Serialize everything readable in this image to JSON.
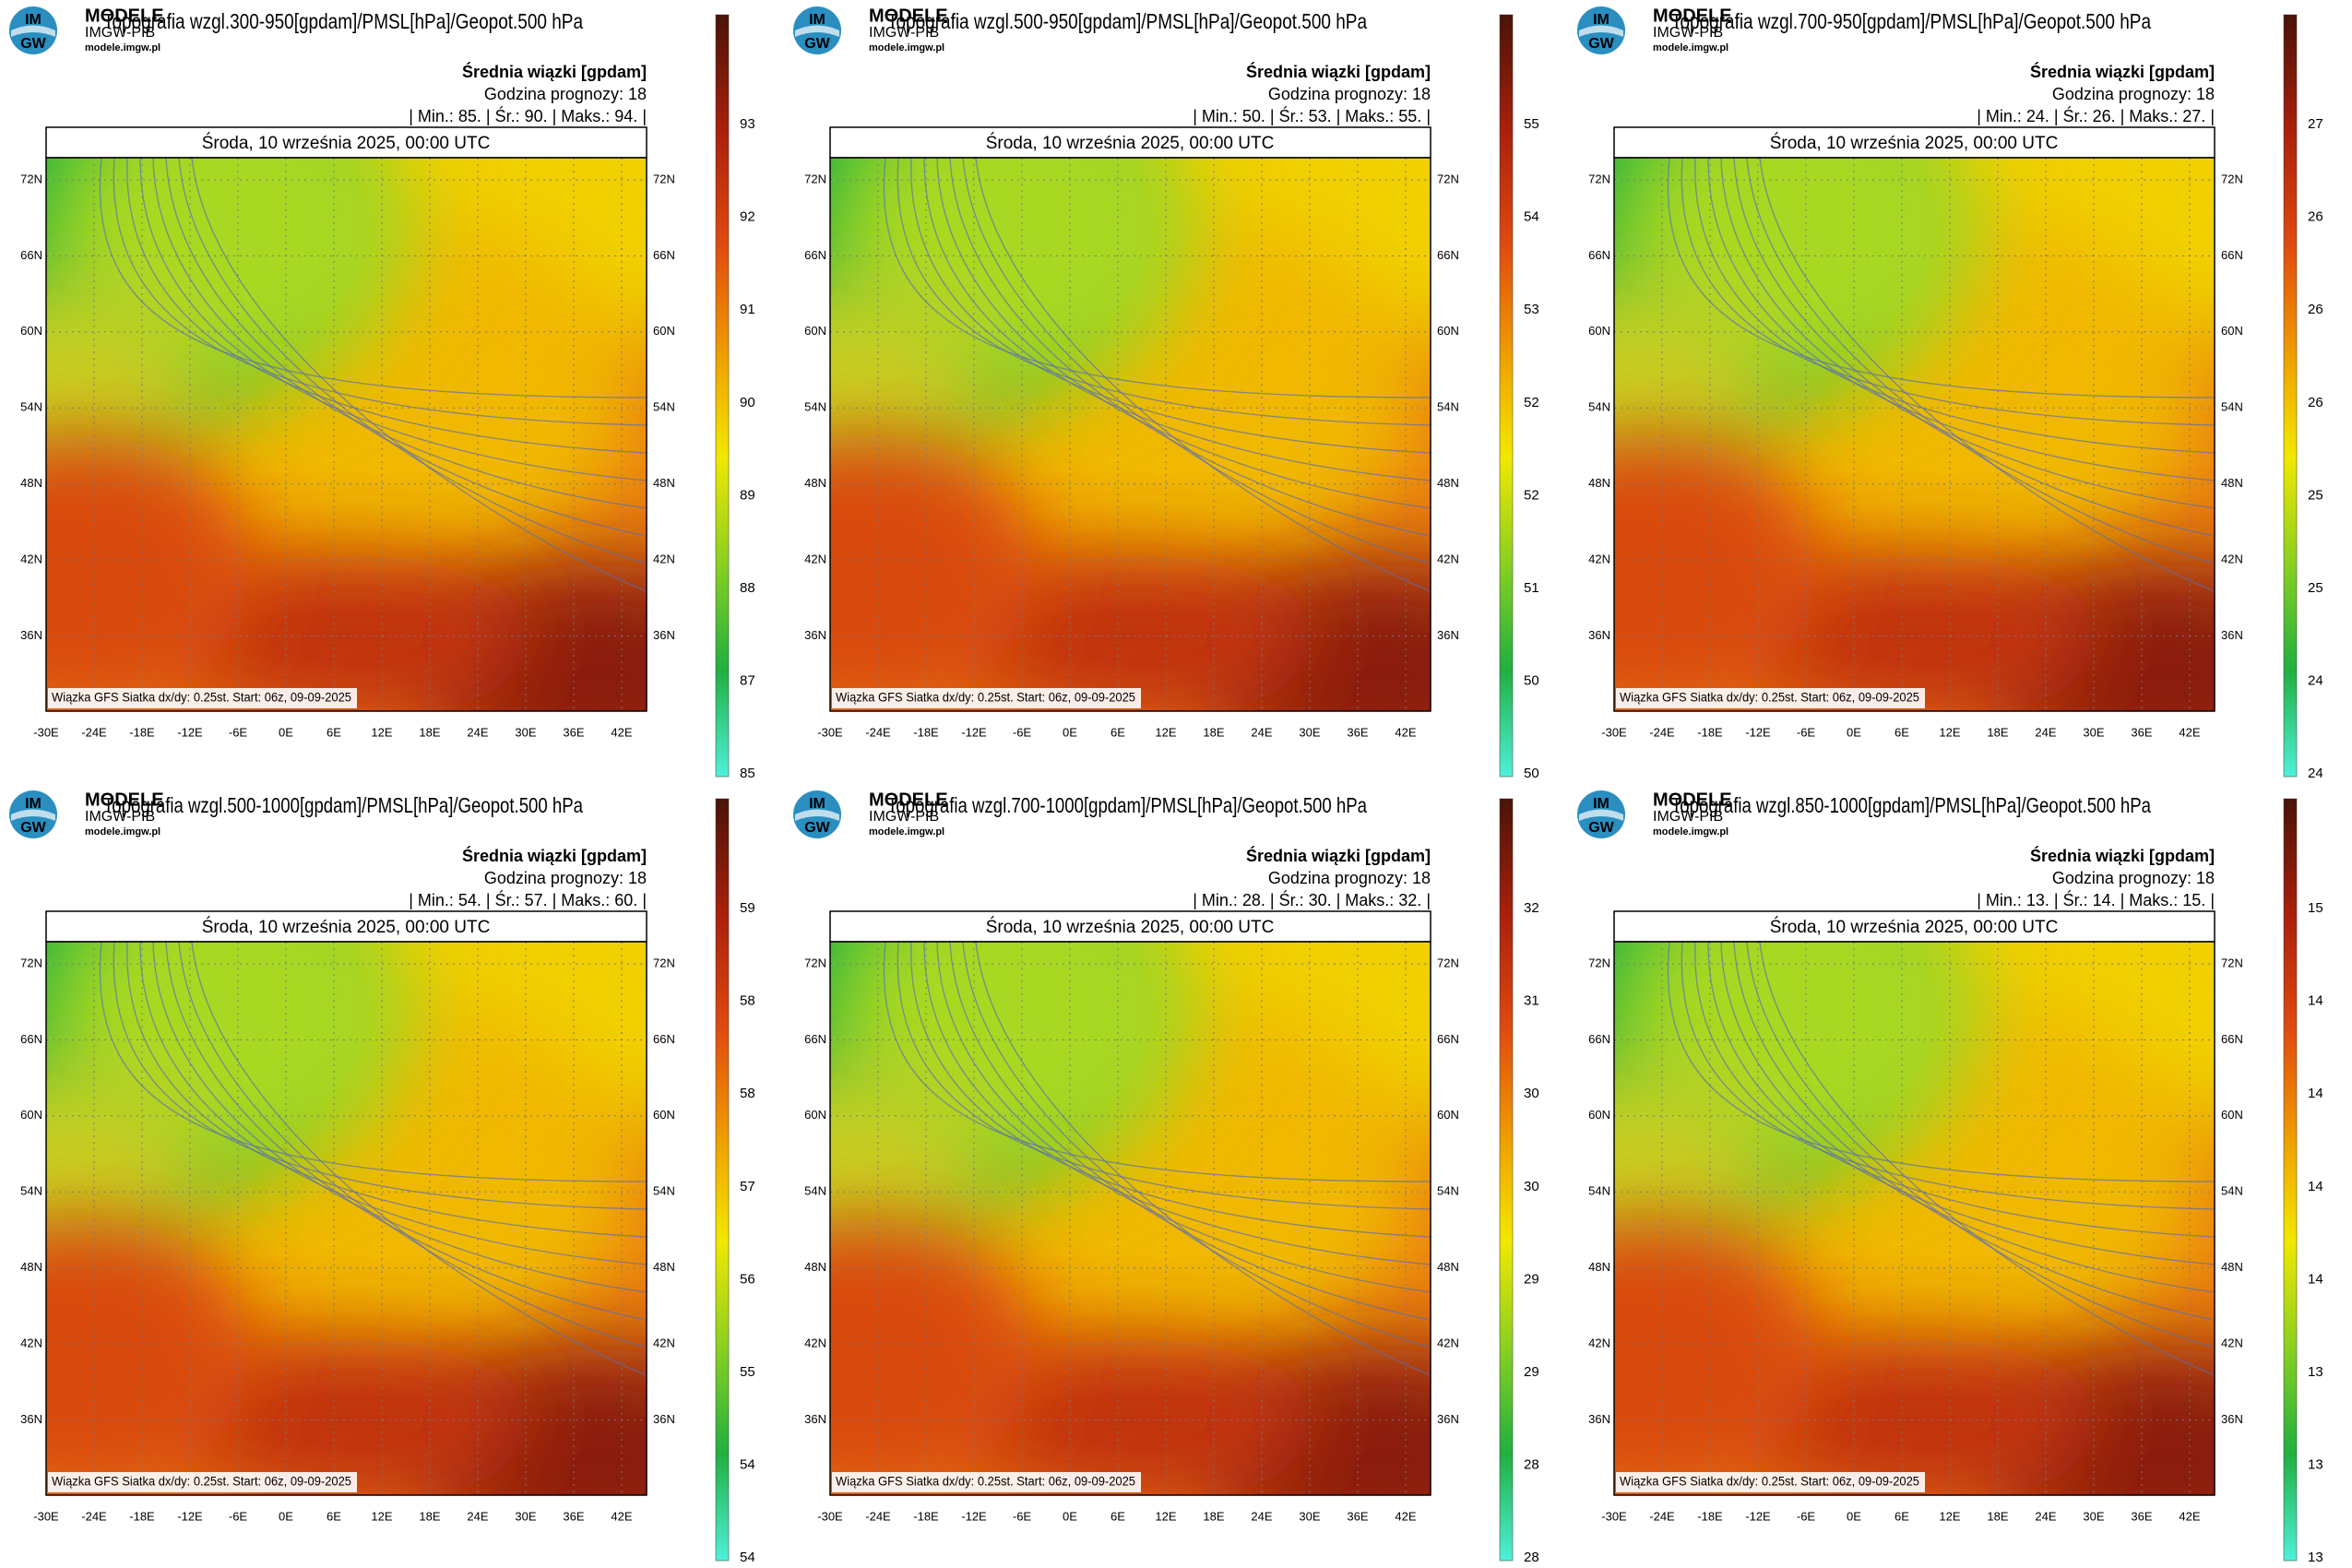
{
  "brand": {
    "name": "MODELE",
    "org": "IMGW-PIB",
    "url": "modele.imgw.pl",
    "logo": [
      "IM",
      "GW"
    ]
  },
  "legend_title": "Średnia wiązki [gpdam]",
  "forecast_hour": "Godzina prognozy: 18",
  "date": "Środa, 10 września 2025, 00:00 UTC",
  "footer": "Wiązka GFS Siatka dx/dy: 0.25st. Start: 06z, 09-09-2025",
  "lat_labels": [
    "72N",
    "66N",
    "60N",
    "54N",
    "48N",
    "42N",
    "36N"
  ],
  "lon_labels": [
    "-30E",
    "-24E",
    "-18E",
    "-12E",
    "-6E",
    "0E",
    "6E",
    "12E",
    "18E",
    "24E",
    "30E",
    "36E",
    "42E"
  ],
  "panels": [
    {
      "title": "Topografia wzgl.300-950[gpdam]/PMSL[hPa]/Geopot.500 hPa",
      "stats": "| Min.:   85. | Śr.:   90. | Maks.:   94. |",
      "colorbar_labels": [
        "93",
        "92",
        "91",
        "90",
        "89",
        "88",
        "87",
        "85"
      ]
    },
    {
      "title": "Topografia wzgl.500-950[gpdam]/PMSL[hPa]/Geopot.500 hPa",
      "stats": "| Min.:   50. | Śr.:   53. | Maks.:   55. |",
      "colorbar_labels": [
        "55",
        "54",
        "53",
        "52",
        "52",
        "51",
        "50",
        "50"
      ]
    },
    {
      "title": "Topografia wzgl.700-950[gpdam]/PMSL[hPa]/Geopot.500 hPa",
      "stats": "| Min.:   24. | Śr.:   26. | Maks.:   27. |",
      "colorbar_labels": [
        "27",
        "26",
        "26",
        "26",
        "25",
        "25",
        "24",
        "24"
      ]
    },
    {
      "title": "Topografia wzgl.500-1000[gpdam]/PMSL[hPa]/Geopot.500 hPa",
      "stats": "| Min.:   54. | Śr.:   57. | Maks.:   60. |",
      "colorbar_labels": [
        "59",
        "58",
        "58",
        "57",
        "56",
        "55",
        "54",
        "54"
      ]
    },
    {
      "title": "Topografia wzgl.700-1000[gpdam]/PMSL[hPa]/Geopot.500 hPa",
      "stats": "| Min.:   28. | Śr.:   30. | Maks.:   32. |",
      "colorbar_labels": [
        "32",
        "31",
        "30",
        "30",
        "29",
        "29",
        "28",
        "28"
      ]
    },
    {
      "title": "Topografia wzgl.850-1000[gpdam]/PMSL[hPa]/Geopot.500 hPa",
      "stats": "| Min.:   13. | Śr.:   14. | Maks.:   15. |",
      "colorbar_labels": [
        "15",
        "14",
        "14",
        "14",
        "14",
        "13",
        "13",
        "13"
      ]
    }
  ]
}
